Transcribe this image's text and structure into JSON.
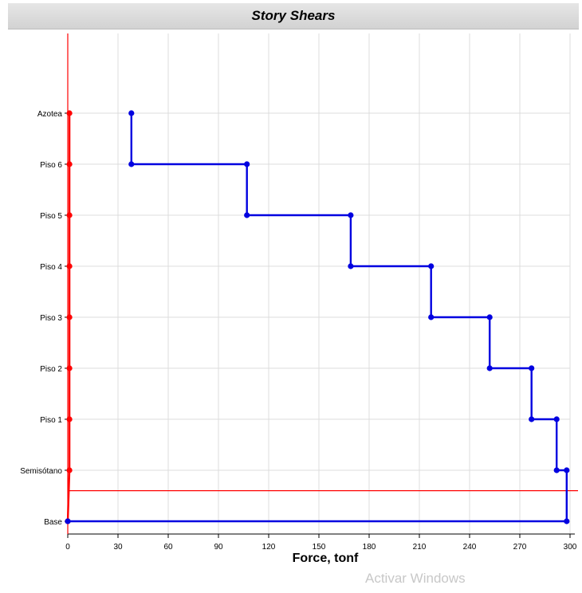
{
  "window": {
    "title": "Story Shears",
    "watermark": "Activar Windows"
  },
  "chart_data": {
    "type": "line",
    "title": "Story Shears",
    "xlabel": "Force, tonf",
    "ylabel": "",
    "xlim": [
      0,
      300
    ],
    "xticks": [
      "0",
      "30",
      "60",
      "90",
      "120",
      "150",
      "180",
      "210",
      "240",
      "270",
      "300"
    ],
    "stories": [
      "Azotea",
      "Piso 6",
      "Piso 5",
      "Piso 4",
      "Piso 3",
      "Piso 2",
      "Piso 1",
      "Semisótano",
      "Base"
    ],
    "grid": true,
    "legend": "none",
    "reference_line_level": 0.6,
    "series": [
      {
        "color": "#0000e0",
        "points": [
          {
            "x": 38,
            "y": 8
          },
          {
            "x": 38,
            "y": 7
          },
          {
            "x": 107,
            "y": 7
          },
          {
            "x": 107,
            "y": 6
          },
          {
            "x": 169,
            "y": 6
          },
          {
            "x": 169,
            "y": 5
          },
          {
            "x": 217,
            "y": 5
          },
          {
            "x": 217,
            "y": 4
          },
          {
            "x": 252,
            "y": 4
          },
          {
            "x": 252,
            "y": 3
          },
          {
            "x": 277,
            "y": 3
          },
          {
            "x": 277,
            "y": 2
          },
          {
            "x": 292,
            "y": 2
          },
          {
            "x": 292,
            "y": 1
          },
          {
            "x": 298,
            "y": 1
          },
          {
            "x": 298,
            "y": 0
          },
          {
            "x": 0,
            "y": 0
          }
        ]
      },
      {
        "color": "#ff0000",
        "points": [
          {
            "x": 1,
            "y": 8
          },
          {
            "x": 1,
            "y": 7
          },
          {
            "x": 1,
            "y": 6
          },
          {
            "x": 1,
            "y": 5
          },
          {
            "x": 1,
            "y": 4
          },
          {
            "x": 1,
            "y": 3
          },
          {
            "x": 1,
            "y": 2
          },
          {
            "x": 1,
            "y": 1
          },
          {
            "x": 0,
            "y": 0
          }
        ]
      }
    ]
  }
}
